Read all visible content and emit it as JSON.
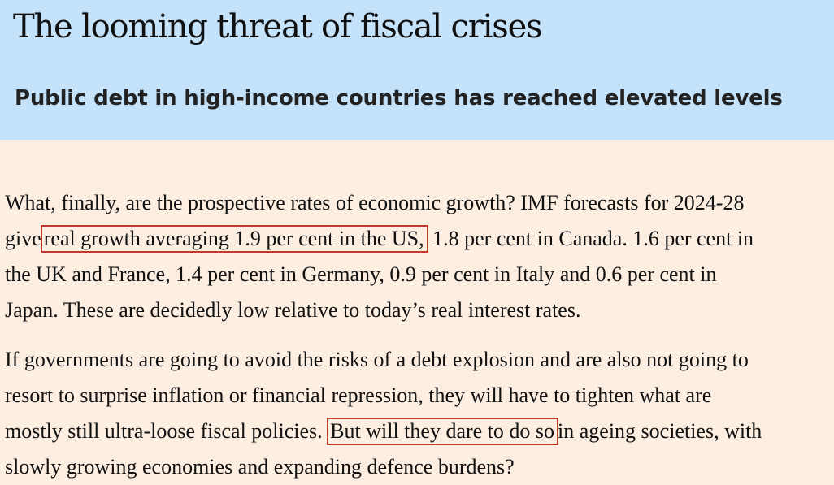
{
  "header": {
    "title": "The looming threat of fiscal crises",
    "subtitle": "Public debt in high-income countries has reached elevated levels"
  },
  "paragraph1": {
    "line1": "What, finally, are the prospective rates of economic growth? IMF forecasts for 2024-28",
    "line2_pre": "give",
    "line2_highlight": "real growth averaging 1.9 per cent in the US,",
    "line2_post": "1.8 per cent in Canada. 1.6 per cent in",
    "line3": "the UK and France, 1.4 per cent in Germany, 0.9 per cent in Italy and 0.6 per cent in",
    "line4": "Japan. These are decidedly low relative to today’s real interest rates."
  },
  "paragraph2": {
    "line1": "If governments are going to avoid the risks of a debt explosion and are also not going to",
    "line2": "resort to surprise inflation or financial repression, they will have to tighten what are",
    "line3_pre": "mostly still ultra-loose fiscal policies.",
    "line3_highlight": "But will they dare to do so",
    "line3_post": "in ageing societies, with",
    "line4": "slowly growing economies and expanding defence burdens?"
  },
  "colors": {
    "header_background": "#c4e2fa",
    "page_background": "#fdeee2",
    "highlight_border": "#c0392b"
  }
}
